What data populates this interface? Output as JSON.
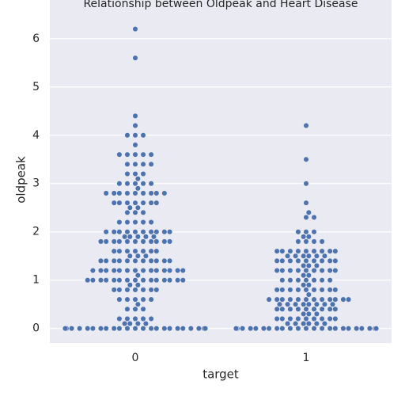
{
  "chart_data": {
    "type": "swarm",
    "title": "Relationship between Oldpeak and Heart Disease",
    "x_label": "target",
    "y_label": "oldpeak",
    "categories": [
      "0",
      "1"
    ],
    "color": "#4c72b0",
    "ylim": [
      -0.3,
      6.8
    ],
    "yticks": [
      0,
      1,
      2,
      3,
      4,
      5,
      6
    ],
    "grid": true,
    "values": [
      [
        0,
        0,
        0,
        0,
        0,
        0,
        0,
        0,
        0,
        0,
        0,
        0,
        0,
        0,
        0,
        0,
        0,
        0,
        0,
        0,
        0,
        0,
        0,
        0,
        0,
        0,
        0.1,
        0.1,
        0.1,
        0.1,
        0.2,
        0.2,
        0.2,
        0.2,
        0.2,
        0.4,
        0.4,
        0.4,
        0.5,
        0.6,
        0.6,
        0.6,
        0.6,
        0.6,
        0.8,
        0.8,
        0.8,
        0.8,
        0.8,
        0.8,
        0.8,
        0.9,
        0.9,
        1,
        1,
        1,
        1,
        1,
        1,
        1,
        1,
        1,
        1,
        1,
        1,
        1,
        1,
        1,
        1.1,
        1.2,
        1.2,
        1.2,
        1.2,
        1.2,
        1.2,
        1.2,
        1.2,
        1.2,
        1.2,
        1.2,
        1.2,
        1.2,
        1.2,
        1.4,
        1.4,
        1.4,
        1.4,
        1.4,
        1.4,
        1.4,
        1.4,
        1.4,
        1.4,
        1.4,
        1.5,
        1.5,
        1.5,
        1.6,
        1.6,
        1.6,
        1.6,
        1.6,
        1.6,
        1.6,
        1.8,
        1.8,
        1.8,
        1.8,
        1.8,
        1.8,
        1.8,
        1.8,
        1.8,
        1.8,
        1.8,
        1.9,
        1.9,
        1.9,
        1.9,
        1.9,
        2,
        2,
        2,
        2,
        2,
        2,
        2,
        2,
        2,
        2,
        2.2,
        2.2,
        2.2,
        2.2,
        2.2,
        2.4,
        2.4,
        2.4,
        2.5,
        2.5,
        2.6,
        2.6,
        2.6,
        2.6,
        2.6,
        2.6,
        2.6,
        2.8,
        2.8,
        2.8,
        2.8,
        2.8,
        2.8,
        2.8,
        2.8,
        2.8,
        2.9,
        3,
        3,
        3,
        3,
        3,
        3.1,
        3.2,
        3.2,
        3.2,
        3.4,
        3.4,
        3.4,
        3.4,
        3.6,
        3.6,
        3.6,
        3.6,
        3.6,
        3.8,
        4,
        4,
        4,
        4.2,
        4.4,
        5.6,
        6.2
      ],
      [
        0,
        0,
        0,
        0,
        0,
        0,
        0,
        0,
        0,
        0,
        0,
        0,
        0,
        0,
        0,
        0,
        0,
        0,
        0,
        0,
        0,
        0,
        0,
        0,
        0,
        0,
        0,
        0,
        0,
        0,
        0,
        0,
        0,
        0,
        0,
        0,
        0,
        0,
        0,
        0,
        0.1,
        0.1,
        0.1,
        0.1,
        0.1,
        0.1,
        0.2,
        0.2,
        0.2,
        0.2,
        0.2,
        0.2,
        0.2,
        0.2,
        0.2,
        0.3,
        0.3,
        0.3,
        0.4,
        0.4,
        0.4,
        0.4,
        0.4,
        0.4,
        0.4,
        0.4,
        0.4,
        0.5,
        0.5,
        0.5,
        0.5,
        0.5,
        0.5,
        0.5,
        0.5,
        0.6,
        0.6,
        0.6,
        0.6,
        0.6,
        0.6,
        0.6,
        0.6,
        0.6,
        0.6,
        0.6,
        0.6,
        0.7,
        0.8,
        0.8,
        0.8,
        0.8,
        0.8,
        0.8,
        0.8,
        0.8,
        0.8,
        0.9,
        0.9,
        1,
        1,
        1,
        1,
        1,
        1,
        1,
        1.1,
        1.1,
        1.2,
        1.2,
        1.2,
        1.2,
        1.2,
        1.2,
        1.2,
        1.2,
        1.2,
        1.3,
        1.3,
        1.3,
        1.4,
        1.4,
        1.4,
        1.4,
        1.4,
        1.4,
        1.4,
        1.4,
        1.4,
        1.5,
        1.5,
        1.5,
        1.5,
        1.5,
        1.5,
        1.6,
        1.6,
        1.6,
        1.6,
        1.6,
        1.6,
        1.6,
        1.6,
        1.6,
        1.8,
        1.8,
        1.8,
        1.8,
        1.9,
        1.9,
        2,
        2,
        2,
        2.3,
        2.3,
        2.4,
        2.6,
        3,
        3.5,
        4.2
      ]
    ]
  }
}
